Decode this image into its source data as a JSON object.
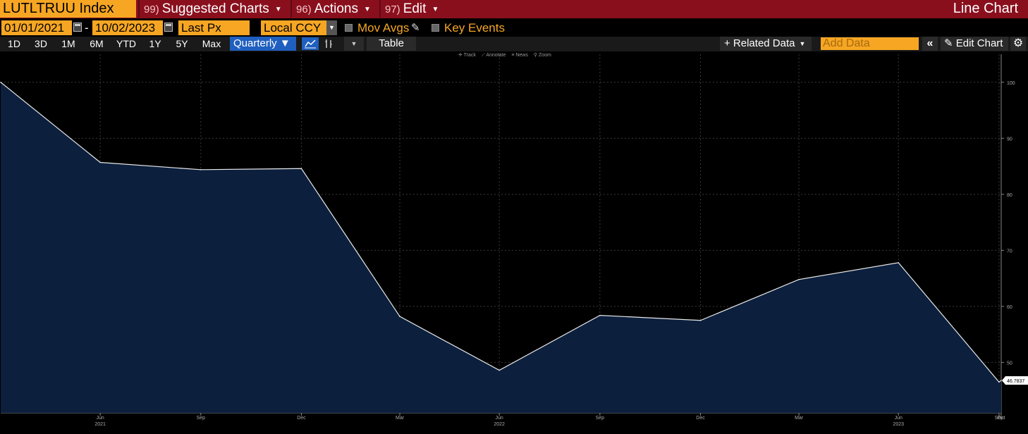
{
  "header": {
    "ticker": "LUTLTRUU Index",
    "menus": [
      {
        "num": "99)",
        "label": "Suggested Charts"
      },
      {
        "num": "96)",
        "label": "Actions"
      },
      {
        "num": "97)",
        "label": "Edit"
      }
    ],
    "chart_type_label": "Line Chart"
  },
  "settings": {
    "start_date": "01/01/2021",
    "end_date": "10/02/2023",
    "separator": "-",
    "field": "Last Px",
    "currency": "Local CCY",
    "mov_avgs_label": "Mov Avgs",
    "key_events_label": "Key Events"
  },
  "toolbar": {
    "ranges": [
      "1D",
      "3D",
      "1M",
      "6M",
      "YTD",
      "1Y",
      "5Y",
      "Max"
    ],
    "frequency": "Quarterly ▼",
    "table_label": "Table",
    "related_label": "+ Related Data",
    "add_data_placeholder": "Add Data",
    "edit_chart_label": "Edit Chart",
    "chart_tools": [
      "✛ Track",
      "⟋ Annotate",
      "≡ News",
      "⚲ Zoom"
    ]
  },
  "colors": {
    "accent_orange": "#f6a623",
    "header_red": "#8a0f1d",
    "selected_blue": "#1f5fbf",
    "area_fill": "#0c1f3d",
    "line": "#e8e8e8"
  },
  "chart_data": {
    "type": "area",
    "title": "",
    "xlabel": "",
    "ylabel": "",
    "x": [
      "2021-03-31",
      "2021-06-30",
      "2021-09-30",
      "2021-12-31",
      "2022-03-31",
      "2022-06-30",
      "2022-09-30",
      "2022-12-31",
      "2023-03-31",
      "2023-06-30",
      "2023-09-30",
      "2023-10-02"
    ],
    "series": [
      {
        "name": "",
        "values": [
          100.0,
          85.7,
          84.4,
          84.6,
          58.2,
          48.6,
          58.4,
          57.5,
          64.8,
          67.8,
          46.5,
          46.7837
        ]
      }
    ],
    "ylim": [
      41,
      105
    ],
    "yticks": [
      50,
      60,
      70,
      80,
      90,
      100
    ],
    "last_value_label": "46.7837",
    "x_tick_labels": [
      {
        "date": "2021-06-30",
        "label": "Jun"
      },
      {
        "date": "2021-09-30",
        "label": "Sep"
      },
      {
        "date": "2021-12-31",
        "label": "Dec"
      },
      {
        "date": "2022-03-31",
        "label": "Mar"
      },
      {
        "date": "2022-06-30",
        "label": "Jun"
      },
      {
        "date": "2022-09-30",
        "label": "Sep"
      },
      {
        "date": "2022-12-31",
        "label": "Dec"
      },
      {
        "date": "2023-03-31",
        "label": "Mar"
      },
      {
        "date": "2023-06-30",
        "label": "Jun"
      },
      {
        "date": "2023-09-30",
        "label": "Sep"
      },
      {
        "date": "2023-10-02",
        "label": "Oct"
      }
    ],
    "year_labels": [
      {
        "date": "2021-06-30",
        "label": "2021"
      },
      {
        "date": "2022-06-30",
        "label": "2022"
      },
      {
        "date": "2023-06-30",
        "label": "2023"
      }
    ],
    "grid": true
  }
}
